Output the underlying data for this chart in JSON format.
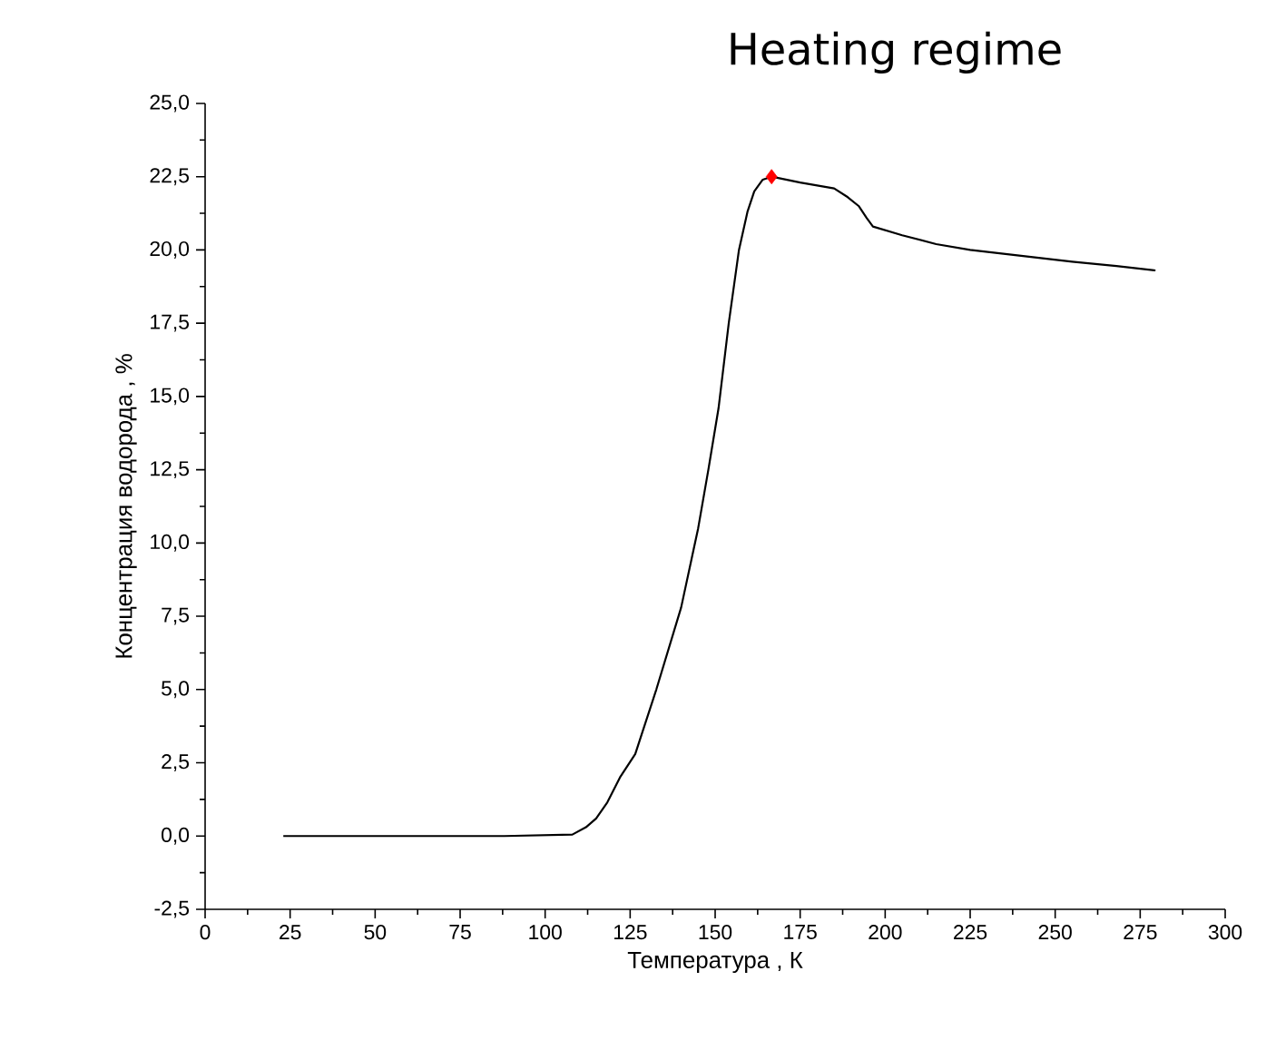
{
  "chart_data": {
    "type": "line",
    "title": "Heating regime",
    "xlabel": "Температура , К",
    "ylabel": "Концентрация водорода , %",
    "xlim": [
      0,
      300
    ],
    "xticks": [
      0,
      25,
      50,
      75,
      100,
      125,
      150,
      175,
      200,
      225,
      250,
      275,
      300
    ],
    "ylim": [
      -2.5,
      25
    ],
    "yticks": [
      {
        "value": -2.5,
        "label": "-2,5"
      },
      {
        "value": 0,
        "label": "0,0"
      },
      {
        "value": 2.5,
        "label": "2,5"
      },
      {
        "value": 5,
        "label": "5,0"
      },
      {
        "value": 7.5,
        "label": "7,5"
      },
      {
        "value": 10,
        "label": "10,0"
      },
      {
        "value": 12.5,
        "label": "12,5"
      },
      {
        "value": 15,
        "label": "15,0"
      },
      {
        "value": 17.5,
        "label": "17,5"
      },
      {
        "value": 20,
        "label": "20,0"
      },
      {
        "value": 22.5,
        "label": "22,5"
      },
      {
        "value": 25,
        "label": "25,0"
      }
    ],
    "series": [
      {
        "color": "#000000",
        "x": [
          23,
          50,
          88,
          108,
          112,
          115,
          118.3,
          122,
          126.5,
          132.7,
          140,
          145,
          148,
          151,
          154,
          157,
          159.5,
          161.5,
          164,
          166.6,
          175,
          185,
          189,
          192.2,
          194.5,
          196.4,
          205,
          215,
          225,
          240,
          255,
          268,
          279.5
        ],
        "values": [
          0,
          0,
          0,
          0.05,
          0.3,
          0.6,
          1.15,
          2,
          2.8,
          5,
          7.8,
          10.5,
          12.5,
          14.6,
          17.5,
          20,
          21.3,
          22,
          22.4,
          22.5,
          22.3,
          22.1,
          21.8,
          21.5,
          21.1,
          20.8,
          20.5,
          20.2,
          20,
          19.8,
          19.6,
          19.45,
          19.3
        ]
      },
      {
        "type": "scatter",
        "color": "#ff0000",
        "marker": "diamond",
        "x": [
          166.6
        ],
        "values": [
          22.5
        ]
      }
    ]
  }
}
